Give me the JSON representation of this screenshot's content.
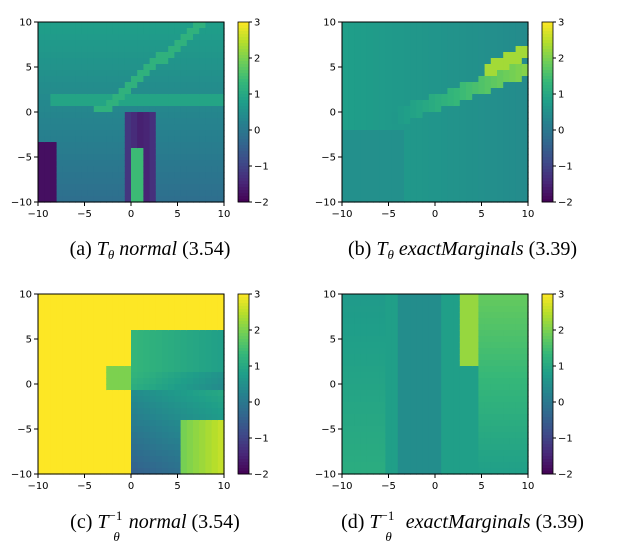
{
  "colormap": {
    "name": "viridis",
    "stops": [
      "#440154",
      "#482878",
      "#3e4a89",
      "#31688e",
      "#26828e",
      "#1f9e89",
      "#35b779",
      "#6ece58",
      "#b5de2b",
      "#fde725"
    ]
  },
  "chart_data": [
    {
      "type": "heatmap",
      "id": "a",
      "caption": {
        "letter": "(a)",
        "T": "T",
        "sub": "θ",
        "sup": "",
        "method": "normal",
        "score": "(3.54)"
      },
      "x_ticks": [
        "−10",
        "−5",
        "0",
        "5",
        "10"
      ],
      "y_ticks": [
        "10",
        "5",
        "0",
        "−5",
        "−10"
      ],
      "xlim": [
        -10,
        10
      ],
      "ylim": [
        -10,
        10
      ],
      "colorbar": {
        "ticks": [
          "3",
          "2",
          "1",
          "0",
          "−1",
          "−2"
        ],
        "range": [
          -2,
          3
        ]
      },
      "base_value": 0.2
    },
    {
      "type": "heatmap",
      "id": "b",
      "caption": {
        "letter": "(b)",
        "T": "T",
        "sub": "θ",
        "sup": "",
        "method": "exactMarginals",
        "score": "(3.39)"
      },
      "x_ticks": [
        "−10",
        "−5",
        "0",
        "5",
        "10"
      ],
      "y_ticks": [
        "10",
        "5",
        "0",
        "−5",
        "−10"
      ],
      "xlim": [
        -10,
        10
      ],
      "ylim": [
        -10,
        10
      ],
      "colorbar": {
        "ticks": [
          "3",
          "2",
          "1",
          "0",
          "−1",
          "−2"
        ],
        "range": [
          -2,
          3
        ]
      },
      "base_value": 0.5
    },
    {
      "type": "heatmap",
      "id": "c",
      "caption": {
        "letter": "(c)",
        "T": "T",
        "sub": "θ",
        "sup": "−1",
        "method": "normal",
        "score": "(3.54)"
      },
      "x_ticks": [
        "−10",
        "−5",
        "0",
        "5",
        "10"
      ],
      "y_ticks": [
        "10",
        "5",
        "0",
        "−5",
        "−10"
      ],
      "xlim": [
        -10,
        10
      ],
      "ylim": [
        -10,
        10
      ],
      "colorbar": {
        "ticks": [
          "3",
          "2",
          "1",
          "0",
          "−1",
          "−2"
        ],
        "range": [
          -2,
          3
        ]
      },
      "base_value": 3.0
    },
    {
      "type": "heatmap",
      "id": "d",
      "caption": {
        "letter": "(d)",
        "T": "T",
        "sub": "θ",
        "sup": "−1",
        "method": "exactMarginals",
        "score": "(3.39)"
      },
      "x_ticks": [
        "−10",
        "−5",
        "0",
        "5",
        "10"
      ],
      "y_ticks": [
        "10",
        "5",
        "0",
        "−5",
        "−10"
      ],
      "xlim": [
        -10,
        10
      ],
      "ylim": [
        -10,
        10
      ],
      "colorbar": {
        "ticks": [
          "3",
          "2",
          "1",
          "0",
          "−1",
          "−2"
        ],
        "range": [
          -2,
          3
        ]
      },
      "base_value": 0.7
    }
  ]
}
